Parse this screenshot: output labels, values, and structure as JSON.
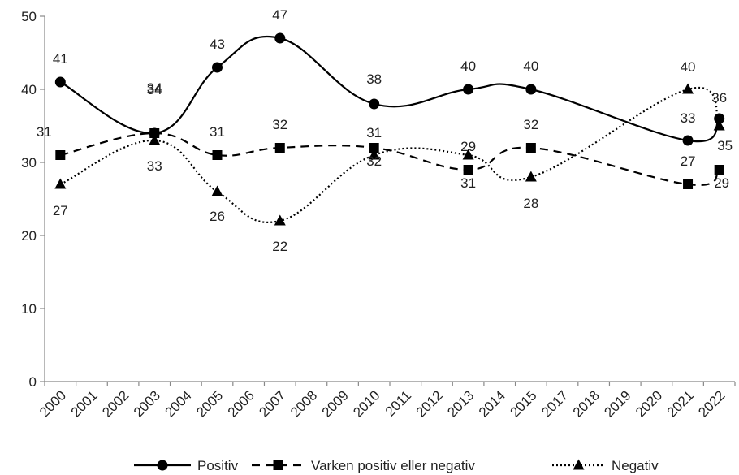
{
  "chart_data": {
    "type": "line",
    "x": [
      "2000",
      "2001",
      "2002",
      "2003",
      "2004",
      "2005",
      "2006",
      "2007",
      "2008",
      "2009",
      "2010",
      "2011",
      "2012",
      "2013",
      "2014",
      "2015",
      "2017",
      "2018",
      "2019",
      "2020",
      "2021",
      "2022"
    ],
    "ylim": [
      0,
      50
    ],
    "yticks": [
      0,
      10,
      20,
      30,
      40,
      50
    ],
    "grid": false,
    "legend": "bottom",
    "series": [
      {
        "name": "Positiv",
        "style": "solid",
        "marker": "circle",
        "color": "#000000",
        "points": [
          {
            "x": "2000",
            "y": 41
          },
          {
            "x": "2003",
            "y": 34
          },
          {
            "x": "2005",
            "y": 43
          },
          {
            "x": "2007",
            "y": 47
          },
          {
            "x": "2010",
            "y": 38
          },
          {
            "x": "2013",
            "y": 40
          },
          {
            "x": "2015",
            "y": 40
          },
          {
            "x": "2021",
            "y": 33
          },
          {
            "x": "2022",
            "y": 36
          }
        ]
      },
      {
        "name": "Varken positiv eller negativ",
        "style": "dashed",
        "marker": "square",
        "color": "#000000",
        "points": [
          {
            "x": "2000",
            "y": 31
          },
          {
            "x": "2003",
            "y": 34
          },
          {
            "x": "2005",
            "y": 31
          },
          {
            "x": "2007",
            "y": 32
          },
          {
            "x": "2010",
            "y": 32
          },
          {
            "x": "2013",
            "y": 29
          },
          {
            "x": "2015",
            "y": 32
          },
          {
            "x": "2021",
            "y": 27
          },
          {
            "x": "2022",
            "y": 29
          }
        ]
      },
      {
        "name": "Negativ",
        "style": "dotted",
        "marker": "triangle",
        "color": "#000000",
        "points": [
          {
            "x": "2000",
            "y": 27
          },
          {
            "x": "2003",
            "y": 33
          },
          {
            "x": "2005",
            "y": 26
          },
          {
            "x": "2007",
            "y": 22
          },
          {
            "x": "2010",
            "y": 31
          },
          {
            "x": "2013",
            "y": 31
          },
          {
            "x": "2015",
            "y": 28
          },
          {
            "x": "2021",
            "y": 40
          },
          {
            "x": "2022",
            "y": 35
          }
        ]
      }
    ]
  }
}
